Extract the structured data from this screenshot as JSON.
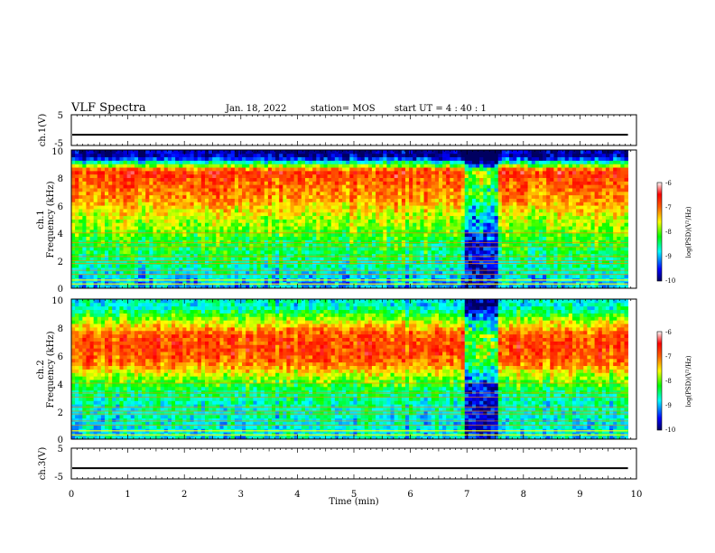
{
  "header": {
    "title": "VLF Spectra",
    "date": "Jan. 18, 2022",
    "station": "station= MOS",
    "start": "start UT =  4 : 40 : 1"
  },
  "panels": {
    "ch1_voltage": {
      "ylabel": "ch.1(V)",
      "ticks": [
        "5",
        "-5"
      ]
    },
    "ch1_spectrogram": {
      "ylabel_line1": "ch.1",
      "ylabel_line2": "Frequency (kHz)",
      "ticks": [
        "10",
        "8",
        "6",
        "4",
        "2",
        "0"
      ]
    },
    "ch2_spectrogram": {
      "ylabel_line1": "ch.2",
      "ylabel_line2": "Frequency (kHz)",
      "ticks": [
        "10",
        "8",
        "6",
        "4",
        "2",
        "0"
      ]
    },
    "ch3_voltage": {
      "ylabel": "ch.3(V)",
      "ticks": [
        "5",
        "-5"
      ]
    }
  },
  "xaxis": {
    "label": "Time (min)",
    "ticks": [
      "0",
      "1",
      "2",
      "3",
      "4",
      "5",
      "6",
      "7",
      "8",
      "9",
      "10"
    ]
  },
  "colorbars": [
    {
      "label": "log(PSD)(V²/Hz)",
      "ticks": [
        "-6",
        "-7",
        "-8",
        "-9",
        "-10"
      ]
    },
    {
      "label": "log(PSD)(V²/Hz)",
      "ticks": [
        "-6",
        "-7",
        "-8",
        "-9",
        "-10"
      ]
    }
  ],
  "colors": {
    "high": "#ff0000",
    "mid_high": "#ffff00",
    "mid": "#00ff00",
    "mid_low": "#00ffff",
    "low": "#0000ff",
    "lowest": "#000080"
  },
  "chart_data": {
    "type": "heatmap",
    "x_range_min": [
      0,
      10
    ],
    "spectrogram_freq_range_khz": [
      0,
      10
    ],
    "colorbar_range_log_psd": [
      -10,
      -6
    ],
    "voltage_range_v": [
      -5,
      5
    ],
    "data_end_min": 9.85,
    "ch1_voltage_level_v": -1.5,
    "ch3_voltage_level_v": -1.5,
    "ch1_spectrum_profile": [
      {
        "f_khz": 0.5,
        "log_psd": -9.0
      },
      {
        "f_khz": 1.5,
        "log_psd": -8.6
      },
      {
        "f_khz": 2.5,
        "log_psd": -8.4
      },
      {
        "f_khz": 3.5,
        "log_psd": -8.2
      },
      {
        "f_khz": 4.5,
        "log_psd": -7.9
      },
      {
        "f_khz": 5.5,
        "log_psd": -7.6
      },
      {
        "f_khz": 6.5,
        "log_psd": -7.2
      },
      {
        "f_khz": 7.5,
        "log_psd": -7.0
      },
      {
        "f_khz": 8.5,
        "log_psd": -6.7
      },
      {
        "f_khz": 9.5,
        "log_psd": -9.8
      }
    ],
    "ch2_spectrum_profile": [
      {
        "f_khz": 0.5,
        "log_psd": -8.8
      },
      {
        "f_khz": 1.5,
        "log_psd": -8.7
      },
      {
        "f_khz": 2.5,
        "log_psd": -8.6
      },
      {
        "f_khz": 3.5,
        "log_psd": -8.4
      },
      {
        "f_khz": 4.5,
        "log_psd": -7.8
      },
      {
        "f_khz": 5.5,
        "log_psd": -7.0
      },
      {
        "f_khz": 6.5,
        "log_psd": -6.8
      },
      {
        "f_khz": 7.5,
        "log_psd": -6.9
      },
      {
        "f_khz": 8.5,
        "log_psd": -7.8
      },
      {
        "f_khz": 9.5,
        "log_psd": -8.7
      }
    ],
    "low_power_intervals": [
      {
        "t_start_min": 6.9,
        "t_end_min": 7.55,
        "f_max_khz_ch1": 3.5,
        "f_max_khz_ch2": 4.0,
        "log_psd": -10
      }
    ],
    "tone_lines_khz": [
      0.3,
      0.6,
      1.0,
      1.3,
      1.8,
      2.0,
      2.3,
      3.0,
      3.3,
      4.0
    ]
  }
}
